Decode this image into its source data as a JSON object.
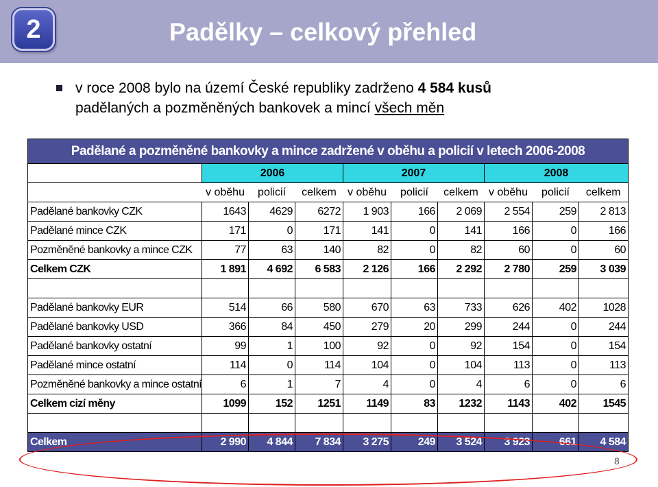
{
  "header": {
    "badge": "2",
    "title": "Padělky – celkový přehled"
  },
  "intro": {
    "text_before": "v roce 2008 bylo na území České republiky zadrženo ",
    "bold": "4 584 kusů",
    "line2_before": "padělaných a pozměněných bankovek a mincí ",
    "underlined": "všech měn"
  },
  "table": {
    "caption": "Padělané a pozměněné bankovky a mince zadržené v oběhu a policií v letech 2006-2008",
    "years": [
      "2006",
      "2007",
      "2008"
    ],
    "subheaders": [
      "v oběhu",
      "policií",
      "celkem",
      "v oběhu",
      "policií",
      "celkem",
      "v oběhu",
      "policií",
      "celkem"
    ],
    "czk_rows": [
      {
        "label": "Padělané bankovky CZK",
        "values": [
          "1643",
          "4629",
          "6272",
          "1 903",
          "166",
          "2 069",
          "2 554",
          "259",
          "2 813"
        ]
      },
      {
        "label": "Padělané mince CZK",
        "values": [
          "171",
          "0",
          "171",
          "141",
          "0",
          "141",
          "166",
          "0",
          "166"
        ]
      },
      {
        "label": "Pozměněné bankovky a mince CZK",
        "values": [
          "77",
          "63",
          "140",
          "82",
          "0",
          "82",
          "60",
          "0",
          "60"
        ]
      }
    ],
    "czk_total": {
      "label": "Celkem CZK",
      "values": [
        "1 891",
        "4 692",
        "6 583",
        "2 126",
        "166",
        "2 292",
        "2 780",
        "259",
        "3 039"
      ]
    },
    "foreign_rows": [
      {
        "label": "Padělané bankovky EUR",
        "values": [
          "514",
          "66",
          "580",
          "670",
          "63",
          "733",
          "626",
          "402",
          "1028"
        ]
      },
      {
        "label": "Padělané bankovky USD",
        "values": [
          "366",
          "84",
          "450",
          "279",
          "20",
          "299",
          "244",
          "0",
          "244"
        ]
      },
      {
        "label": "Padělané bankovky ostatní",
        "values": [
          "99",
          "1",
          "100",
          "92",
          "0",
          "92",
          "154",
          "0",
          "154"
        ]
      },
      {
        "label": "Padělané mince ostatní",
        "values": [
          "114",
          "0",
          "114",
          "104",
          "0",
          "104",
          "113",
          "0",
          "113"
        ]
      },
      {
        "label": "Pozměněné bankovky a mince ostatní",
        "values": [
          "6",
          "1",
          "7",
          "4",
          "0",
          "4",
          "6",
          "0",
          "6"
        ]
      }
    ],
    "foreign_total": {
      "label": "Celkem cizí měny",
      "values": [
        "1099",
        "152",
        "1251",
        "1149",
        "83",
        "1232",
        "1143",
        "402",
        "1545"
      ]
    },
    "grand_total": {
      "label": "Celkem",
      "values": [
        "2 990",
        "4 844",
        "7 834",
        "3 275",
        "249",
        "3 524",
        "3 923",
        "661",
        "4 584"
      ]
    }
  },
  "page_number": "8"
}
